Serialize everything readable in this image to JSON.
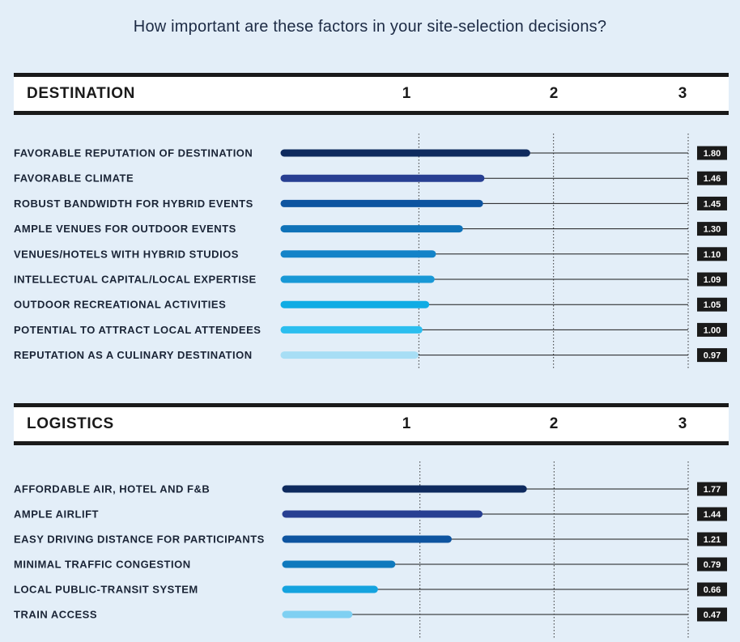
{
  "title": "How important are these factors in your site-selection decisions?",
  "chart_data": [
    {
      "type": "bar",
      "orientation": "horizontal",
      "section": "DESTINATION",
      "xlim": [
        0,
        3
      ],
      "ticks": [
        "1",
        "2",
        "3"
      ],
      "categories": [
        "FAVORABLE REPUTATION OF DESTINATION",
        "FAVORABLE CLIMATE",
        "ROBUST BANDWIDTH FOR HYBRID EVENTS",
        "AMPLE VENUES FOR OUTDOOR EVENTS",
        "VENUES/HOTELS WITH HYBRID STUDIOS",
        "INTELLECTUAL CAPITAL/LOCAL EXPERTISE",
        "OUTDOOR RECREATIONAL ACTIVITIES",
        "POTENTIAL TO ATTRACT LOCAL ATTENDEES",
        "REPUTATION AS A CULINARY DESTINATION"
      ],
      "values": [
        1.8,
        1.46,
        1.45,
        1.3,
        1.1,
        1.09,
        1.05,
        1.0,
        0.97
      ],
      "labels": [
        "1.80",
        "1.46",
        "1.45",
        "1.30",
        "1.10",
        "1.09",
        "1.05",
        "1.00",
        "0.97"
      ],
      "colors": [
        "#0e2a5e",
        "#283f92",
        "#0d54a0",
        "#0f72b8",
        "#1483c8",
        "#1898d6",
        "#10ace4",
        "#2bbeef",
        "#a7def5"
      ]
    },
    {
      "type": "bar",
      "orientation": "horizontal",
      "section": "LOGISTICS",
      "xlim": [
        0,
        3
      ],
      "ticks": [
        "1",
        "2",
        "3"
      ],
      "categories": [
        "AFFORDABLE AIR, HOTEL AND F&B",
        "AMPLE AIRLIFT",
        "EASY DRIVING DISTANCE FOR PARTICIPANTS",
        "MINIMAL TRAFFIC CONGESTION",
        "LOCAL PUBLIC-TRANSIT SYSTEM",
        "TRAIN ACCESS"
      ],
      "values": [
        1.77,
        1.44,
        1.21,
        0.79,
        0.66,
        0.47
      ],
      "labels": [
        "1.77",
        "1.44",
        "1.21",
        "0.79",
        "0.66",
        "0.47"
      ],
      "colors": [
        "#0e2a5e",
        "#283f92",
        "#0d54a0",
        "#0f79bd",
        "#14a3df",
        "#7fd0f2"
      ]
    }
  ],
  "colors": {
    "background": "#e3eef8",
    "rule": "#1a1a1a",
    "value_box": "#1a1a1a"
  }
}
